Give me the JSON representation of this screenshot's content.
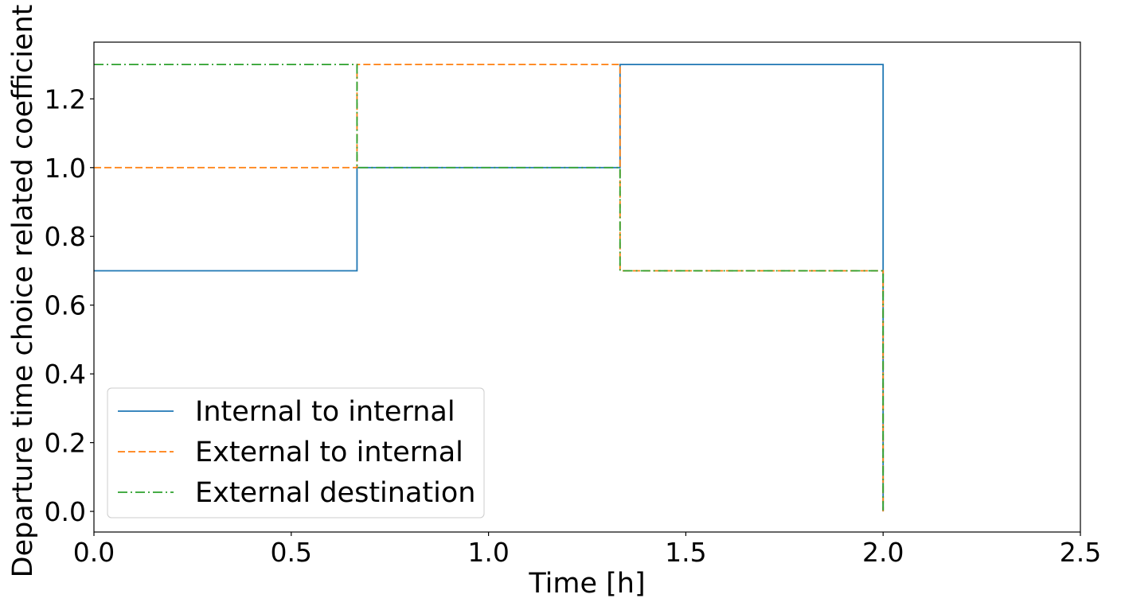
{
  "chart_data": {
    "type": "line",
    "step": "post",
    "xlabel": "Time [h]",
    "ylabel": "Departure time choice related coefficient",
    "xlim": [
      0.0,
      2.5
    ],
    "ylim": [
      -0.06,
      1.365
    ],
    "xticks": [
      "0.0",
      "0.5",
      "1.0",
      "1.5",
      "2.0",
      "2.5"
    ],
    "yticks": [
      "0.0",
      "0.2",
      "0.4",
      "0.6",
      "0.8",
      "1.0",
      "1.2"
    ],
    "grid": false,
    "legend_position": "lower-left",
    "series": [
      {
        "name": "Internal to internal",
        "color": "#1f77b4",
        "dash": "solid",
        "x": [
          0.0,
          0.6667,
          1.3333,
          2.0,
          2.0
        ],
        "y": [
          0.7,
          1.0,
          1.3,
          0.7,
          0.0
        ]
      },
      {
        "name": "External to internal",
        "color": "#ff7f0e",
        "dash": "dashed",
        "x": [
          0.0,
          0.6667,
          1.3333,
          2.0,
          2.0
        ],
        "y": [
          1.0,
          1.3,
          0.7,
          0.7,
          0.0
        ]
      },
      {
        "name": "External destination",
        "color": "#2ca02c",
        "dash": "dashdot",
        "x": [
          0.0,
          0.6667,
          1.3333,
          2.0,
          2.0
        ],
        "y": [
          1.3,
          1.0,
          0.7,
          0.7,
          0.0
        ]
      }
    ]
  }
}
